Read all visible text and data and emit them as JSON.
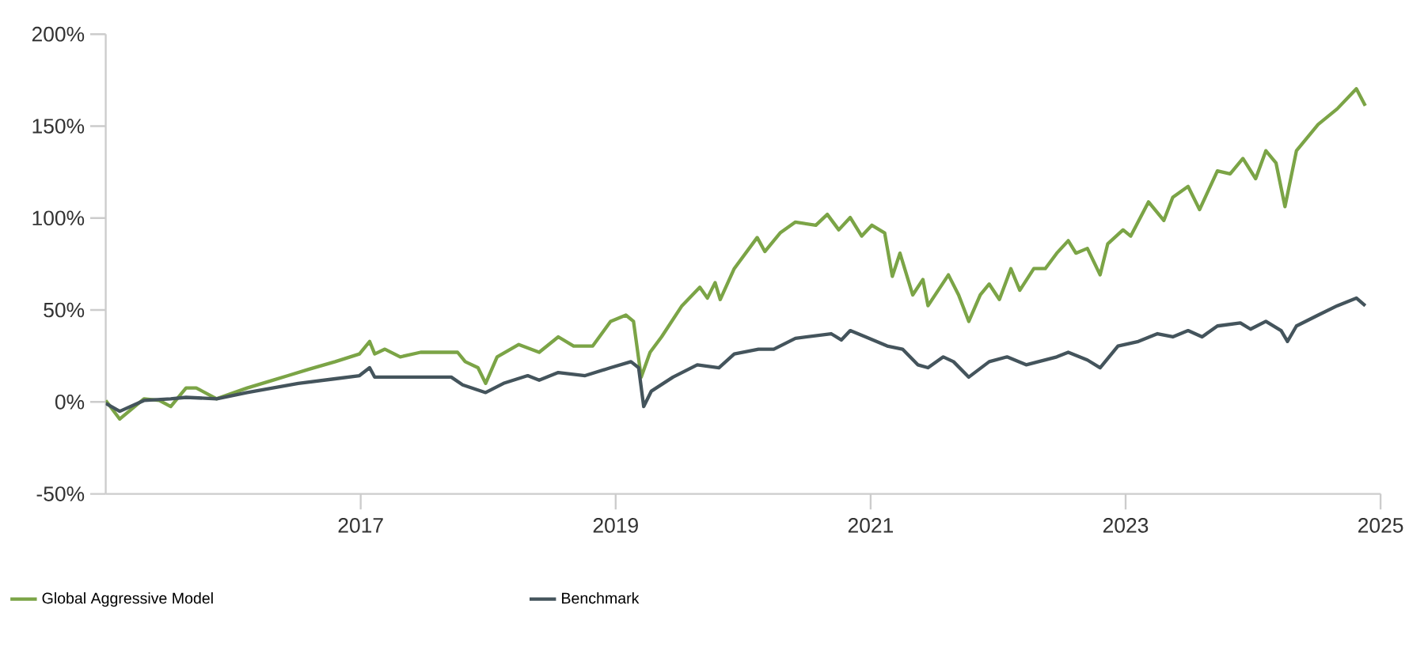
{
  "chart_data": {
    "type": "line",
    "xlim": [
      2015,
      2025
    ],
    "xticks": [
      2017,
      2019,
      2021,
      2023,
      2025
    ],
    "ylim": [
      -50,
      200
    ],
    "yticks": [
      {
        "value": -50,
        "label": "-50%"
      },
      {
        "value": 0,
        "label": "0%"
      },
      {
        "value": 50,
        "label": "50%"
      },
      {
        "value": 100,
        "label": "100%"
      },
      {
        "value": 150,
        "label": "150%"
      },
      {
        "value": 200,
        "label": "200%"
      }
    ],
    "grid": false,
    "legend": "bottom",
    "marker": "none",
    "line_style": "solid",
    "series": [
      {
        "name": "Global Aggressive Model",
        "color": "#7ba446",
        "x": [
          2015.0,
          2015.11,
          2015.3,
          2015.42,
          2015.51,
          2015.63,
          2015.71,
          2015.87,
          2016.11,
          2016.31,
          2016.43,
          2016.59,
          2016.8,
          2016.99,
          2017.07,
          2017.11,
          2017.19,
          2017.31,
          2017.47,
          2017.64,
          2017.76,
          2017.82,
          2017.92,
          2017.98,
          2018.07,
          2018.24,
          2018.4,
          2018.55,
          2018.67,
          2018.82,
          2018.96,
          2019.08,
          2019.14,
          2019.2,
          2019.27,
          2019.36,
          2019.52,
          2019.66,
          2019.72,
          2019.78,
          2019.82,
          2019.93,
          2020.11,
          2020.17,
          2020.29,
          2020.41,
          2020.57,
          2020.66,
          2020.75,
          2020.84,
          2020.93,
          2021.01,
          2021.11,
          2021.17,
          2021.23,
          2021.33,
          2021.41,
          2021.45,
          2021.53,
          2021.61,
          2021.69,
          2021.77,
          2021.86,
          2021.93,
          2022.01,
          2022.1,
          2022.17,
          2022.28,
          2022.37,
          2022.46,
          2022.55,
          2022.61,
          2022.7,
          2022.8,
          2022.86,
          2022.98,
          2023.04,
          2023.18,
          2023.3,
          2023.37,
          2023.49,
          2023.58,
          2023.72,
          2023.82,
          2023.92,
          2024.02,
          2024.1,
          2024.18,
          2024.25,
          2024.34,
          2024.51,
          2024.66,
          2024.81,
          2024.88
        ],
        "values": [
          0.8,
          -9.3,
          1.7,
          0.8,
          -2.5,
          7.6,
          7.6,
          1.7,
          7.6,
          11.8,
          14.3,
          17.7,
          21.9,
          26.1,
          32.9,
          26.1,
          28.7,
          24.5,
          27.0,
          27.0,
          27.0,
          21.9,
          18.6,
          10.1,
          24.5,
          31.2,
          27.0,
          35.4,
          30.4,
          30.4,
          43.8,
          47.2,
          43.8,
          13.5,
          27.0,
          35.4,
          52.3,
          62.4,
          56.5,
          64.9,
          55.7,
          72.5,
          89.4,
          81.8,
          91.9,
          97.8,
          96.1,
          102.0,
          93.6,
          100.3,
          90.2,
          96.1,
          91.9,
          68.3,
          80.9,
          58.2,
          66.6,
          52.3,
          60.7,
          69.1,
          58.2,
          43.8,
          58.2,
          64.1,
          55.7,
          72.5,
          60.7,
          72.5,
          72.5,
          80.9,
          87.7,
          80.9,
          83.5,
          69.1,
          86.0,
          93.6,
          90.2,
          108.8,
          98.7,
          111.3,
          117.2,
          104.6,
          125.6,
          124.0,
          132.4,
          121.4,
          136.6,
          129.9,
          106.2,
          136.6,
          150.9,
          159.4,
          170.3,
          161.1
        ]
      },
      {
        "name": "Benchmark",
        "color": "#44545c",
        "x": [
          2015.0,
          2015.11,
          2015.3,
          2015.51,
          2015.63,
          2015.87,
          2016.11,
          2016.31,
          2016.51,
          2016.8,
          2016.99,
          2017.07,
          2017.11,
          2017.31,
          2017.71,
          2017.8,
          2017.98,
          2018.12,
          2018.31,
          2018.4,
          2018.55,
          2018.76,
          2018.96,
          2019.12,
          2019.18,
          2019.22,
          2019.28,
          2019.45,
          2019.64,
          2019.81,
          2019.93,
          2020.12,
          2020.24,
          2020.41,
          2020.69,
          2020.77,
          2020.84,
          2020.96,
          2021.13,
          2021.25,
          2021.37,
          2021.45,
          2021.57,
          2021.65,
          2021.77,
          2021.93,
          2022.07,
          2022.22,
          2022.46,
          2022.55,
          2022.7,
          2022.8,
          2022.94,
          2023.1,
          2023.25,
          2023.37,
          2023.49,
          2023.6,
          2023.72,
          2023.9,
          2023.98,
          2024.1,
          2024.22,
          2024.27,
          2024.34,
          2024.51,
          2024.66,
          2024.81,
          2024.88
        ],
        "values": [
          -0.8,
          -5.1,
          0.8,
          1.7,
          2.5,
          1.7,
          5.1,
          7.6,
          10.1,
          12.6,
          14.3,
          18.6,
          13.5,
          13.5,
          13.5,
          9.3,
          5.1,
          10.1,
          14.3,
          11.8,
          16.0,
          14.3,
          18.6,
          21.9,
          18.6,
          -2.5,
          5.9,
          13.5,
          20.2,
          18.6,
          26.1,
          28.7,
          28.7,
          34.6,
          37.1,
          33.7,
          38.8,
          35.4,
          30.4,
          28.7,
          20.2,
          18.6,
          24.5,
          21.9,
          13.5,
          21.9,
          24.5,
          20.2,
          24.5,
          27.0,
          22.8,
          18.6,
          30.4,
          32.9,
          37.1,
          35.4,
          38.8,
          35.4,
          41.3,
          43.0,
          39.6,
          43.8,
          38.8,
          32.9,
          41.3,
          47.2,
          52.3,
          56.5,
          52.3
        ]
      }
    ]
  }
}
